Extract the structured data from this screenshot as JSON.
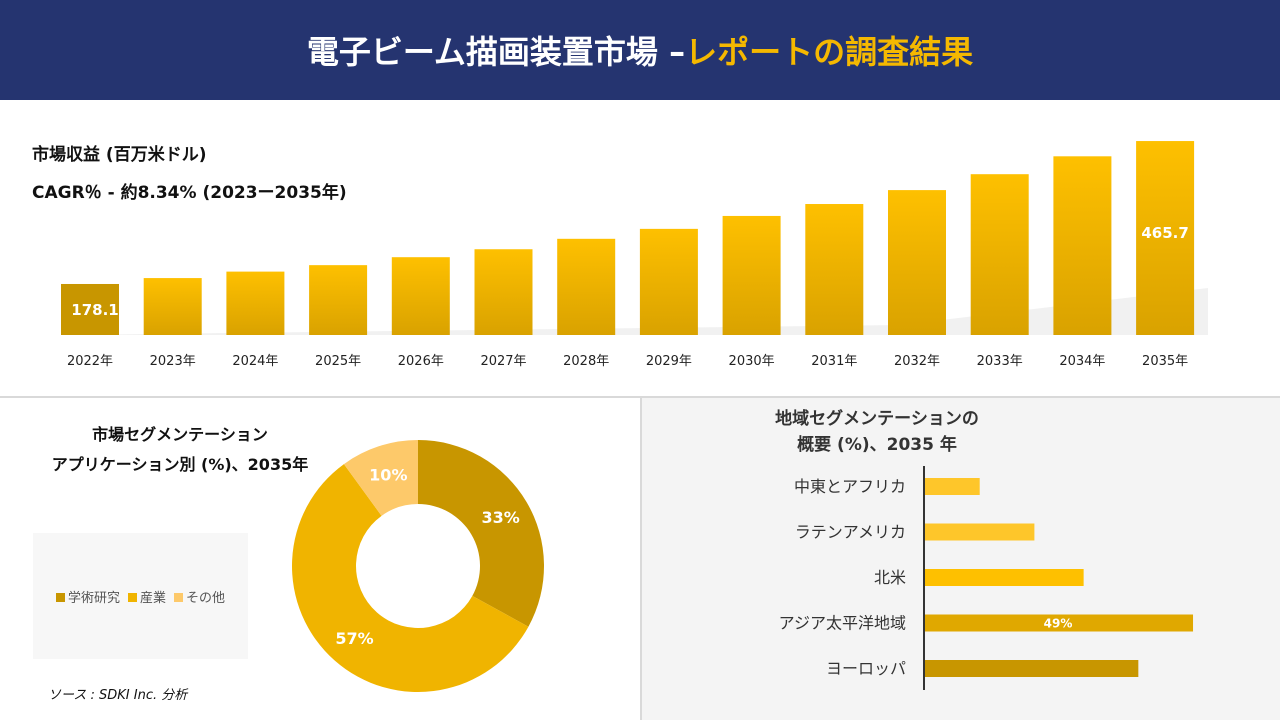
{
  "header": {
    "title_main": "電子ビーム描画装置市場 –",
    "title_accent": "レポートの調査結果"
  },
  "revenue": {
    "title": "市場収益 (百万米ドル)",
    "cagr": "CAGR％ - 約8.34% (2023ー2035年)"
  },
  "chart_data": [
    {
      "type": "bar",
      "categories": [
        "2022年",
        "2023年",
        "2024年",
        "2025年",
        "2026年",
        "2027年",
        "2028年",
        "2029年",
        "2030年",
        "2031年",
        "2032年",
        "2033年",
        "2034年",
        "2035年"
      ],
      "values": [
        178.1,
        190,
        203,
        216,
        232,
        248,
        269,
        289,
        315,
        339,
        367,
        399,
        435,
        465.7
      ],
      "data_labels": {
        "0": "178.1",
        "13": "465.7"
      },
      "colors": {
        "bar": "#f0b400",
        "dark": "#c89600"
      }
    },
    {
      "type": "pie",
      "title": "市場セグメンテーション アプリケーション別 (%)、2035年",
      "title_lines": [
        "市場セグメンテーション",
        "アプリケーション別 (%)、2035年"
      ],
      "categories": [
        "学術研究",
        "産業",
        "その他"
      ],
      "values": [
        33,
        57,
        10
      ],
      "labels": [
        "33%",
        "57%",
        "10%"
      ],
      "colors": [
        "#c89600",
        "#f0b400",
        "#fdc96a"
      ],
      "legend": "left"
    },
    {
      "type": "bar",
      "orientation": "horizontal",
      "title_lines": [
        "地域セグメンテーションの",
        "概要 (%)、2035 年"
      ],
      "categories": [
        "中東とアフリカ",
        "ラテンアメリカ",
        "北米",
        "アジア太平洋地域",
        "ヨーロッパ"
      ],
      "values": [
        10,
        20,
        29,
        49,
        39
      ],
      "data_labels": {
        "3": "49%"
      },
      "colors": [
        "#fec62a",
        "#fec62a",
        "#fec000",
        "#e0a800",
        "#c89600"
      ]
    }
  ],
  "source": "ソース : SDKI Inc. 分析"
}
